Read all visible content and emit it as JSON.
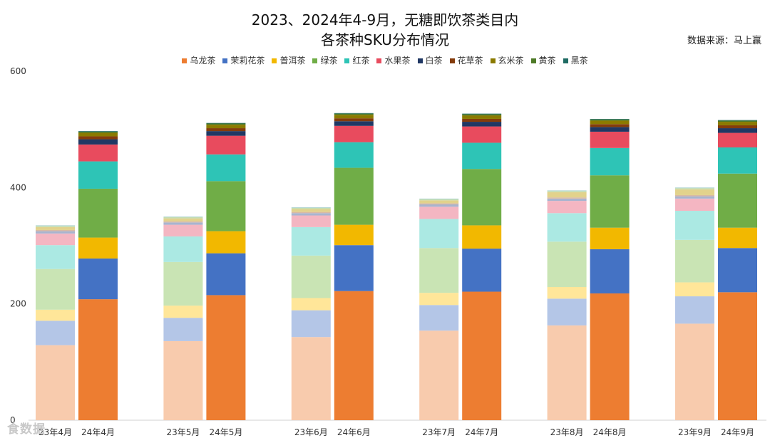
{
  "chart_data": {
    "type": "bar",
    "stacked": true,
    "title": "2023、2024年4-9月，无糖即饮茶类目内",
    "subtitle": "各茶种SKU分布情况",
    "source": "数据来源：马上赢",
    "watermark": "食数据",
    "xlabel": "",
    "ylabel": "",
    "ylim": [
      0,
      600
    ],
    "yticks": [
      0,
      200,
      400,
      600
    ],
    "grid": false,
    "legend_position": "top",
    "categories": [
      "23年4月",
      "24年4月",
      "23年5月",
      "24年5月",
      "23年6月",
      "24年6月",
      "23年7月",
      "24年7月",
      "23年8月",
      "24年8月",
      "23年9月",
      "24年9月"
    ],
    "series": [
      {
        "name": "乌龙茶",
        "color": "#ED7D31",
        "light": "#F8CBAD",
        "values": [
          129,
          208,
          136,
          215,
          143,
          222,
          154,
          221,
          163,
          218,
          166,
          220
        ]
      },
      {
        "name": "茉莉花茶",
        "color": "#4472C4",
        "light": "#B4C6E7",
        "values": [
          42,
          70,
          40,
          72,
          46,
          79,
          44,
          74,
          46,
          76,
          47,
          76
        ]
      },
      {
        "name": "普洱茶",
        "color": "#F2B800",
        "light": "#FFE699",
        "values": [
          19,
          36,
          21,
          38,
          21,
          35,
          21,
          40,
          20,
          37,
          24,
          35
        ]
      },
      {
        "name": "绿茶",
        "color": "#70AD47",
        "light": "#C9E4B4",
        "values": [
          70,
          84,
          75,
          86,
          73,
          98,
          77,
          97,
          78,
          90,
          73,
          93
        ]
      },
      {
        "name": "红茶",
        "color": "#2EC4B6",
        "light": "#ABE9E3",
        "values": [
          41,
          47,
          44,
          46,
          49,
          44,
          50,
          45,
          49,
          47,
          50,
          45
        ]
      },
      {
        "name": "水果茶",
        "color": "#E84B5E",
        "light": "#F4B6C2",
        "values": [
          20,
          29,
          20,
          32,
          20,
          28,
          21,
          28,
          21,
          28,
          21,
          25
        ]
      },
      {
        "name": "白茶",
        "color": "#203864",
        "light": "#A9B4CF",
        "values": [
          4,
          9,
          4,
          8,
          4,
          8,
          4,
          8,
          4,
          8,
          4,
          8
        ]
      },
      {
        "name": "花草茶",
        "color": "#843C0C",
        "light": "#D8B9A3",
        "values": [
          2,
          5,
          2,
          5,
          2,
          5,
          2,
          5,
          2,
          5,
          2,
          5
        ]
      },
      {
        "name": "玄米茶",
        "color": "#8B7A00",
        "light": "#E2D28C",
        "values": [
          5,
          6,
          5,
          6,
          5,
          6,
          5,
          6,
          9,
          6,
          10,
          6
        ]
      },
      {
        "name": "黄茶",
        "color": "#4E7A27",
        "light": "#C5DDB0",
        "values": [
          2,
          2,
          2,
          2,
          2,
          2,
          2,
          2,
          2,
          2,
          2,
          2
        ]
      },
      {
        "name": "黑茶",
        "color": "#1F6B63",
        "light": "#A6CFCA",
        "values": [
          1,
          1,
          1,
          1,
          1,
          1,
          1,
          1,
          1,
          1,
          1,
          1
        ]
      }
    ]
  }
}
